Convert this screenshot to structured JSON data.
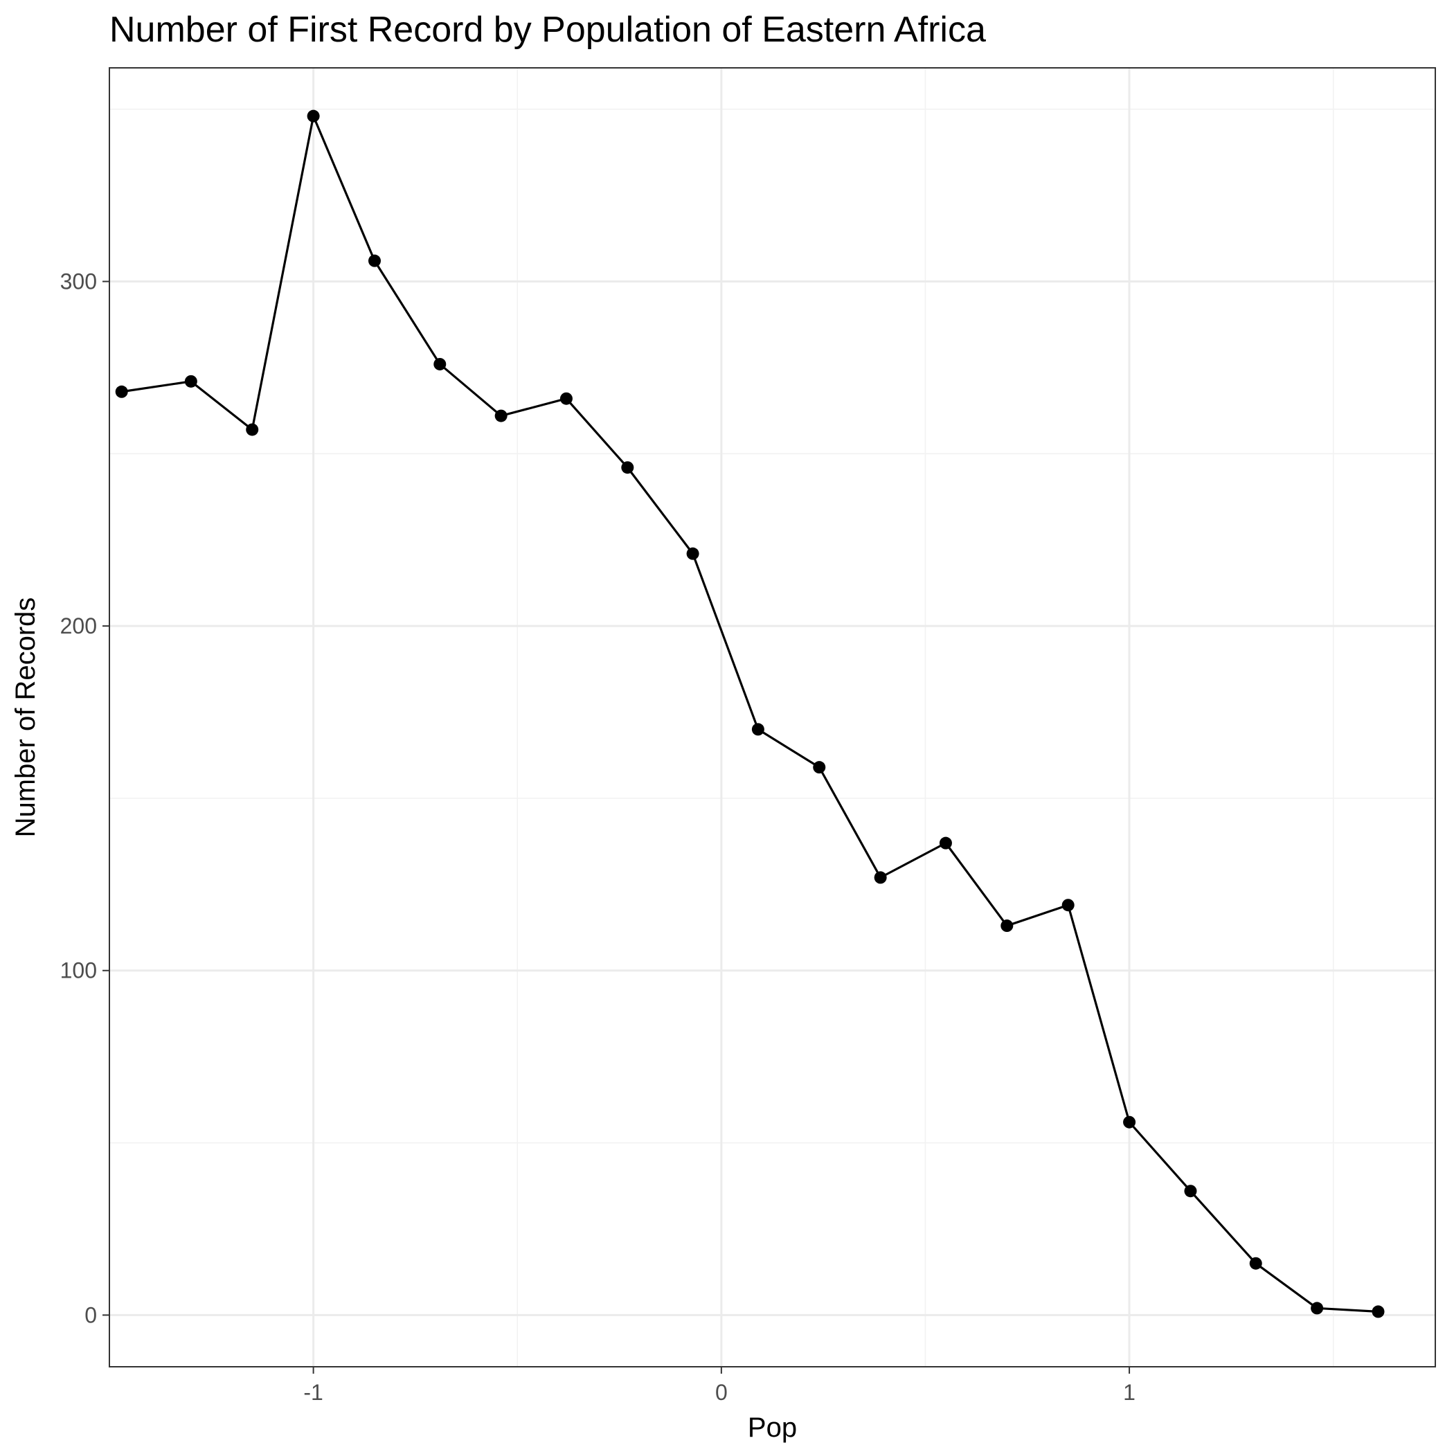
{
  "chart_data": {
    "type": "line",
    "title": "Number of First Record by Population of Eastern Africa",
    "xlabel": "Pop",
    "ylabel": "Number of Records",
    "xlim": [
      -1.5,
      1.75
    ],
    "ylim": [
      -15,
      362
    ],
    "x_ticks": [
      -1,
      0,
      1
    ],
    "x_tick_labels": [
      "-1",
      "0",
      "1"
    ],
    "y_ticks": [
      0,
      100,
      200,
      300
    ],
    "y_tick_labels": [
      "0",
      "100",
      "200",
      "300"
    ],
    "grid": true,
    "legend": "none",
    "series": [
      {
        "x": [
          -1.47,
          -1.3,
          -1.15,
          -1.0,
          -0.85,
          -0.69,
          -0.54,
          -0.38,
          -0.23,
          -0.07,
          0.09,
          0.24,
          0.39,
          0.55,
          0.7,
          0.85,
          1.0,
          1.15,
          1.31,
          1.46,
          1.61
        ],
        "values": [
          268,
          271,
          257,
          348,
          306,
          276,
          261,
          266,
          246,
          221,
          170,
          159,
          127,
          137,
          113,
          119,
          56,
          36,
          15,
          2,
          1
        ]
      }
    ],
    "colors": {
      "line": "#000000",
      "point": "#000000",
      "grid_major": "#ebebeb",
      "grid_minor": "#f2f2f2",
      "panel_border": "#333333",
      "tick_label": "#4d4d4d"
    }
  }
}
